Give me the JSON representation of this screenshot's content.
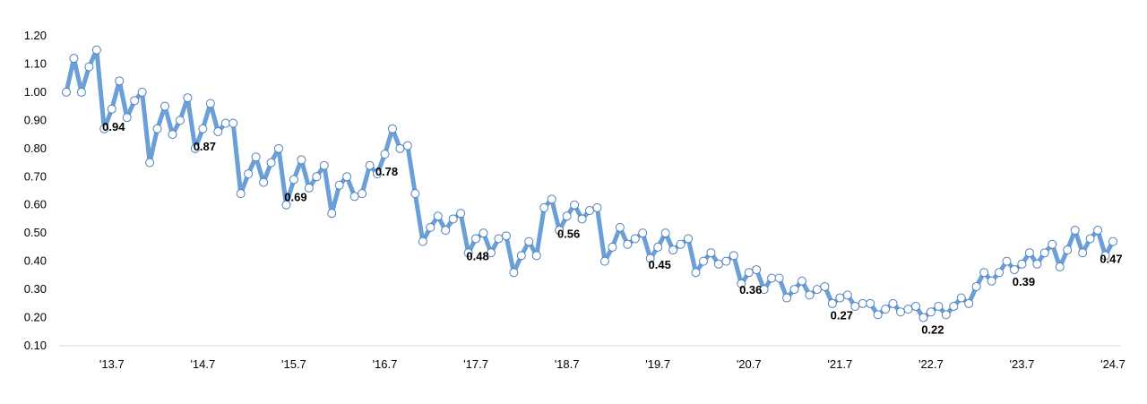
{
  "chart_data": {
    "type": "line",
    "title": "",
    "xlabel": "",
    "ylabel": "",
    "ylim": [
      0.1,
      1.2
    ],
    "yticks": [
      "0.10",
      "0.20",
      "0.30",
      "0.40",
      "0.50",
      "0.60",
      "0.70",
      "0.80",
      "0.90",
      "1.00",
      "1.10",
      "1.20"
    ],
    "xtick_labels": [
      "'13.7",
      "'14.7",
      "'15.7",
      "'16.7",
      "'17.7",
      "'18.7",
      "'19.7",
      "'20.7",
      "'21.7",
      "'22.7",
      "'23.7",
      "'24.7"
    ],
    "series_color": "#6a9fd8",
    "marker_fill": "#ffffff",
    "marker_stroke": "#4f81bd",
    "grid": false,
    "legend": "none",
    "series": [
      {
        "values": [
          1.0,
          1.12,
          1.0,
          1.09,
          1.15,
          0.87,
          0.94,
          1.04,
          0.91,
          0.97,
          1.0,
          0.75,
          0.87,
          0.95,
          0.85,
          0.9,
          0.98,
          0.8,
          0.87,
          0.96,
          0.86,
          0.89,
          0.89,
          0.64,
          0.71,
          0.77,
          0.68,
          0.75,
          0.8,
          0.6,
          0.69,
          0.76,
          0.66,
          0.7,
          0.74,
          0.57,
          0.67,
          0.7,
          0.63,
          0.64,
          0.74,
          0.71,
          0.78,
          0.87,
          0.8,
          0.81,
          0.64,
          0.47,
          0.52,
          0.56,
          0.51,
          0.55,
          0.57,
          0.43,
          0.48,
          0.5,
          0.43,
          0.48,
          0.49,
          0.36,
          0.42,
          0.47,
          0.42,
          0.59,
          0.62,
          0.51,
          0.56,
          0.6,
          0.55,
          0.58,
          0.59,
          0.4,
          0.45,
          0.52,
          0.46,
          0.48,
          0.5,
          0.41,
          0.45,
          0.5,
          0.44,
          0.46,
          0.48,
          0.36,
          0.4,
          0.43,
          0.39,
          0.4,
          0.42,
          0.32,
          0.36,
          0.37,
          0.3,
          0.34,
          0.34,
          0.27,
          0.3,
          0.33,
          0.28,
          0.3,
          0.31,
          0.25,
          0.27,
          0.28,
          0.24,
          0.25,
          0.25,
          0.21,
          0.23,
          0.25,
          0.22,
          0.23,
          0.24,
          0.2,
          0.22,
          0.24,
          0.21,
          0.24,
          0.27,
          0.25,
          0.31,
          0.36,
          0.33,
          0.36,
          0.4,
          0.37,
          0.39,
          0.43,
          0.39,
          0.43,
          0.46,
          0.38,
          0.44,
          0.51,
          0.43,
          0.48,
          0.51,
          0.42,
          0.47
        ]
      }
    ],
    "data_labels": [
      {
        "index": 6,
        "text": "0.94"
      },
      {
        "index": 18,
        "text": "0.87"
      },
      {
        "index": 30,
        "text": "0.69"
      },
      {
        "index": 42,
        "text": "0.78"
      },
      {
        "index": 54,
        "text": "0.48"
      },
      {
        "index": 66,
        "text": "0.56"
      },
      {
        "index": 78,
        "text": "0.45"
      },
      {
        "index": 90,
        "text": "0.36"
      },
      {
        "index": 102,
        "text": "0.27"
      },
      {
        "index": 114,
        "text": "0.22"
      },
      {
        "index": 126,
        "text": "0.39"
      },
      {
        "index": 138,
        "text": "0.47"
      }
    ],
    "xtick_indices": [
      6,
      18,
      30,
      42,
      54,
      66,
      78,
      90,
      102,
      114,
      126,
      138
    ]
  }
}
